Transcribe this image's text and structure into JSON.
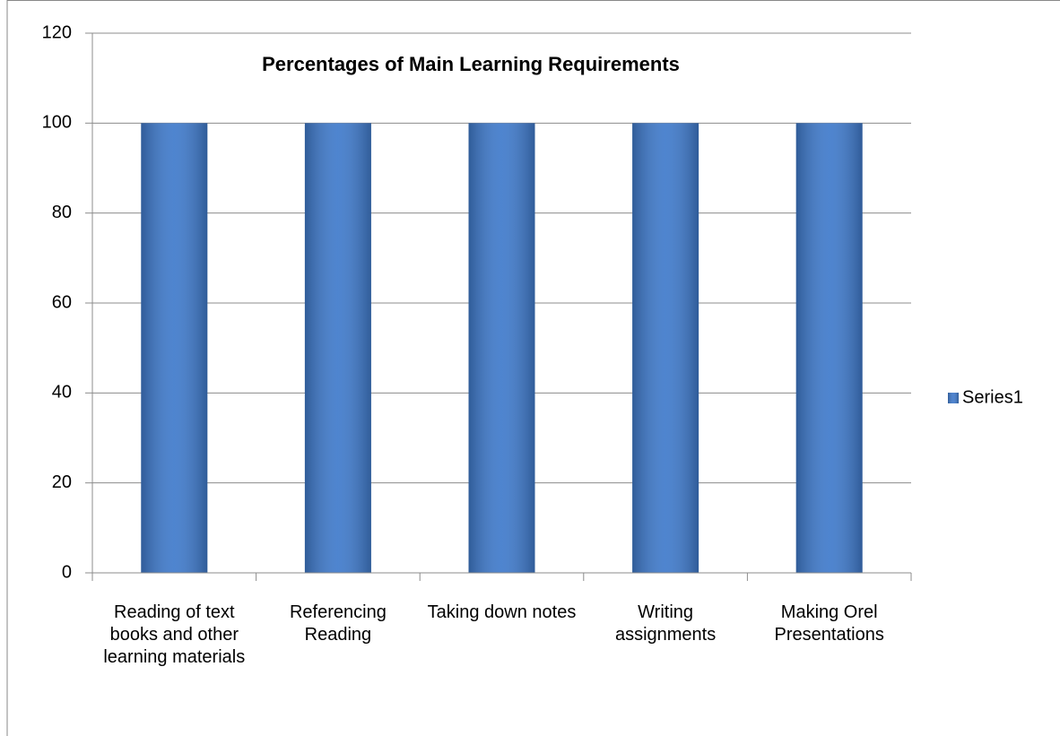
{
  "chart_data": {
    "type": "bar",
    "title": "Percentages of Main Learning Requirements",
    "categories": [
      "Reading of text books and other learning materials",
      "Referencing Reading",
      "Taking down notes",
      "Writing assignments",
      "Making Orel Presentations"
    ],
    "series": [
      {
        "name": "Series1",
        "color": "#3f7acb",
        "values": [
          100,
          100,
          100,
          100,
          100
        ]
      }
    ],
    "ylim": [
      0,
      120
    ],
    "yticks": [
      0,
      20,
      40,
      60,
      80,
      100,
      120
    ],
    "grid": true,
    "legend": "right"
  }
}
